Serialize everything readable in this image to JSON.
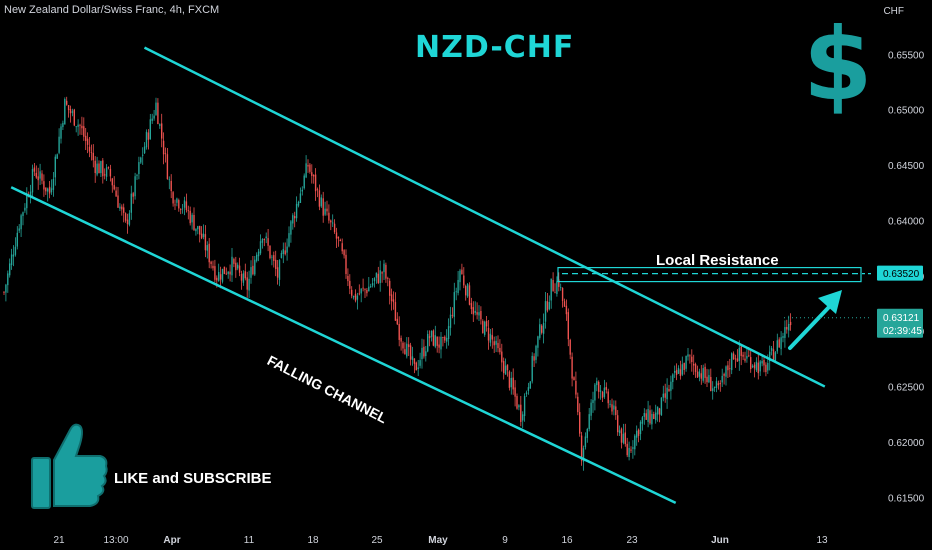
{
  "header": {
    "pair_title": "New Zealand Dollar/Swiss Franc, 4h, FXCM",
    "currency": "CHF"
  },
  "annotations": {
    "headline": "NZD-CHF",
    "resistance_label": "Local Resistance",
    "channel_label": "FALLING CHANNEL",
    "cta_label": "LIKE and SUBSCRIBE",
    "dollar_icon": "dollar-sign-icon",
    "thumb_icon": "thumbs-up-icon"
  },
  "colors": {
    "background": "#000000",
    "bullish": "#26a69a",
    "bearish": "#ef5350",
    "accent": "#1fd6d6",
    "current_price_bg": "#26a69a",
    "resistance_price_bg": "#1fd6d6"
  },
  "chart_data": {
    "type": "candlestick",
    "title": "New Zealand Dollar/Swiss Franc, 4h, FXCM",
    "xlabel": "",
    "ylabel": "CHF",
    "ylim": [
      0.6125,
      0.659
    ],
    "grid": false,
    "x_ticks": [
      "21",
      "13:00",
      "Apr",
      "11",
      "18",
      "25",
      "May",
      "9",
      "16",
      "23",
      "Jun",
      "13"
    ],
    "y_ticks": [
      "0.65500",
      "0.65000",
      "0.64500",
      "0.64000",
      "0.63500",
      "0.63000",
      "0.62500",
      "0.62000",
      "0.61500"
    ],
    "price_series": [
      {
        "i": 0,
        "y": 0.6335
      },
      {
        "i": 8,
        "y": 0.6398
      },
      {
        "i": 16,
        "y": 0.6445
      },
      {
        "i": 24,
        "y": 0.6425
      },
      {
        "i": 32,
        "y": 0.6505
      },
      {
        "i": 40,
        "y": 0.6485
      },
      {
        "i": 48,
        "y": 0.645
      },
      {
        "i": 56,
        "y": 0.644
      },
      {
        "i": 64,
        "y": 0.6395
      },
      {
        "i": 72,
        "y": 0.6455
      },
      {
        "i": 80,
        "y": 0.6505
      },
      {
        "i": 88,
        "y": 0.6425
      },
      {
        "i": 96,
        "y": 0.641
      },
      {
        "i": 104,
        "y": 0.6385
      },
      {
        "i": 112,
        "y": 0.635
      },
      {
        "i": 120,
        "y": 0.636
      },
      {
        "i": 128,
        "y": 0.634
      },
      {
        "i": 136,
        "y": 0.639
      },
      {
        "i": 144,
        "y": 0.635
      },
      {
        "i": 152,
        "y": 0.6402
      },
      {
        "i": 160,
        "y": 0.645
      },
      {
        "i": 168,
        "y": 0.641
      },
      {
        "i": 176,
        "y": 0.638
      },
      {
        "i": 184,
        "y": 0.633
      },
      {
        "i": 192,
        "y": 0.634
      },
      {
        "i": 200,
        "y": 0.6355
      },
      {
        "i": 208,
        "y": 0.63
      },
      {
        "i": 216,
        "y": 0.6265
      },
      {
        "i": 224,
        "y": 0.6295
      },
      {
        "i": 232,
        "y": 0.6285
      },
      {
        "i": 240,
        "y": 0.6355
      },
      {
        "i": 248,
        "y": 0.6315
      },
      {
        "i": 256,
        "y": 0.6295
      },
      {
        "i": 264,
        "y": 0.6265
      },
      {
        "i": 272,
        "y": 0.6225
      },
      {
        "i": 280,
        "y": 0.6285
      },
      {
        "i": 288,
        "y": 0.634
      },
      {
        "i": 292,
        "y": 0.6345
      },
      {
        "i": 296,
        "y": 0.631
      },
      {
        "i": 300,
        "y": 0.625
      },
      {
        "i": 304,
        "y": 0.619
      },
      {
        "i": 312,
        "y": 0.6255
      },
      {
        "i": 320,
        "y": 0.623
      },
      {
        "i": 328,
        "y": 0.619
      },
      {
        "i": 336,
        "y": 0.622
      },
      {
        "i": 344,
        "y": 0.6225
      },
      {
        "i": 352,
        "y": 0.6255
      },
      {
        "i": 360,
        "y": 0.6275
      },
      {
        "i": 368,
        "y": 0.626
      },
      {
        "i": 376,
        "y": 0.6245
      },
      {
        "i": 384,
        "y": 0.628
      },
      {
        "i": 392,
        "y": 0.6275
      },
      {
        "i": 400,
        "y": 0.6265
      },
      {
        "i": 408,
        "y": 0.629
      },
      {
        "i": 414,
        "y": 0.6312
      }
    ],
    "channel_upper": [
      {
        "x_frac": 0.155,
        "y": 0.6556
      },
      {
        "x_frac": 0.885,
        "y": 0.625
      }
    ],
    "channel_lower": [
      {
        "x_frac": 0.012,
        "y": 0.643
      },
      {
        "x_frac": 0.725,
        "y": 0.6145
      }
    ],
    "resistance_level": 0.6352,
    "resistance_label": "0.63520",
    "current_price": 0.63121,
    "current_price_label": "0.63121",
    "countdown": "02:39:45"
  }
}
